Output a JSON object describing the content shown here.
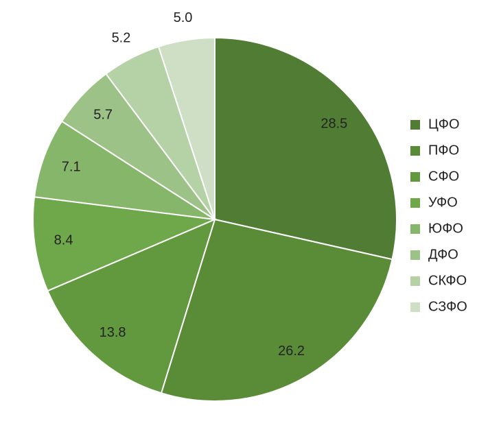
{
  "chart_data": {
    "type": "pie",
    "categories": [
      "ЦФО",
      "ПФО",
      "СФО",
      "УФО",
      "ЮФО",
      "ДФО",
      "СКФО",
      "СЗФО"
    ],
    "values": [
      28.5,
      26.2,
      13.8,
      8.4,
      7.1,
      5.7,
      5.2,
      5.0
    ],
    "value_labels": [
      "28.5",
      "26.2",
      "13.8",
      "8.4",
      "7.1",
      "5.7",
      "5.2",
      "5.0"
    ],
    "colors": [
      "#507d33",
      "#5a8c38",
      "#62993f",
      "#6fa84b",
      "#86b66a",
      "#9dc288",
      "#b5d1a6",
      "#cfdfc6"
    ],
    "legend": "right"
  }
}
